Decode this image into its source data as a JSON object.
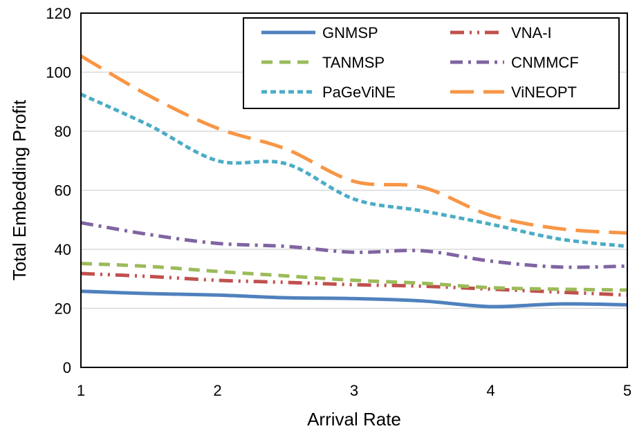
{
  "chart_data": {
    "type": "line",
    "title": "",
    "xlabel": "Arrival Rate",
    "ylabel": "Total Embedding Profit",
    "xlim": [
      1,
      5
    ],
    "ylim": [
      0,
      120
    ],
    "x_ticks": [
      "1",
      "2",
      "3",
      "4",
      "5"
    ],
    "y_ticks": [
      "0",
      "20",
      "40",
      "60",
      "80",
      "100",
      "120"
    ],
    "grid": "horizontal",
    "legend_position": "top-right",
    "x": [
      1,
      1.5,
      2,
      2.5,
      3,
      3.5,
      4,
      4.5,
      5
    ],
    "series": [
      {
        "name": "GNMSP",
        "color": "#4F81BD",
        "style": "solid",
        "values": [
          25.8,
          25.0,
          24.5,
          23.6,
          23.3,
          22.5,
          20.6,
          21.5,
          21.2
        ]
      },
      {
        "name": "VNA-I",
        "color": "#C0504D",
        "style": "dash-dot-dot",
        "values": [
          31.8,
          30.8,
          29.5,
          28.8,
          28.0,
          27.5,
          26.5,
          25.5,
          24.5
        ]
      },
      {
        "name": "TANMSP",
        "color": "#9BBB59",
        "style": "dash",
        "values": [
          35.2,
          34.2,
          32.5,
          31.0,
          29.5,
          28.5,
          27.0,
          26.5,
          26.2
        ]
      },
      {
        "name": "CNMMCF",
        "color": "#8064A2",
        "style": "dash-dot",
        "values": [
          49.0,
          45.0,
          42.0,
          41.0,
          39.0,
          39.5,
          36.0,
          34.0,
          34.3
        ]
      },
      {
        "name": "PaGeViNE",
        "color": "#4BACC6",
        "style": "short-dash",
        "values": [
          92.5,
          82.0,
          70.0,
          69.0,
          57.0,
          53.0,
          48.5,
          43.5,
          41.0
        ]
      },
      {
        "name": "ViNEOPT",
        "color": "#F79646",
        "style": "long-dash",
        "values": [
          105.5,
          92.0,
          81.0,
          74.0,
          63.0,
          61.0,
          51.5,
          47.0,
          45.5
        ]
      }
    ]
  }
}
